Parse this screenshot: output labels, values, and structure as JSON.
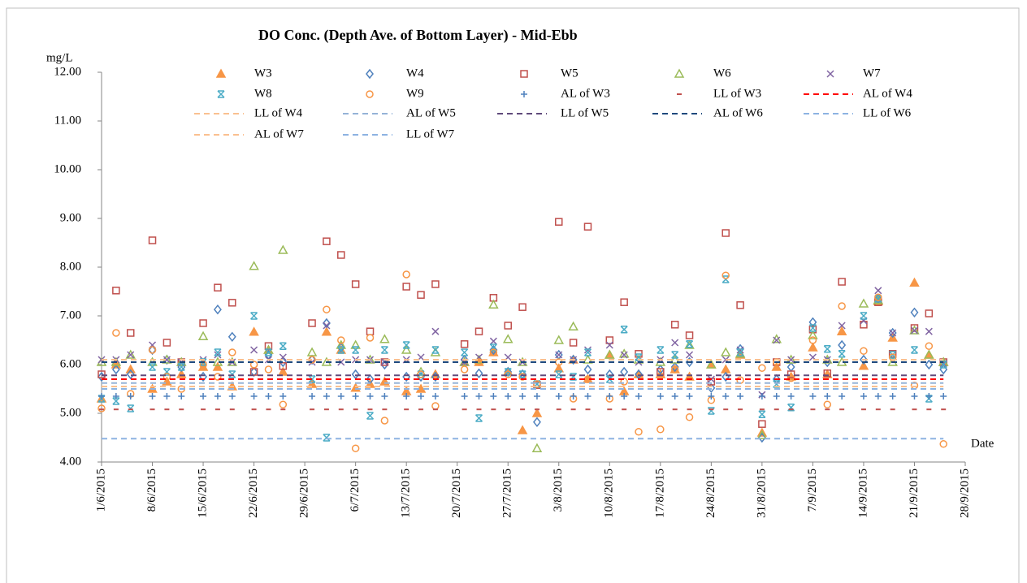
{
  "chart_data": {
    "type": "scatter",
    "title": "DO Conc. (Depth Ave. of Bottom Layer) - Mid-Ebb",
    "y_label": "mg/L",
    "x_label": "Date",
    "x": [
      "2015-06-01",
      "2015-06-03",
      "2015-06-05",
      "2015-06-08",
      "2015-06-10",
      "2015-06-12",
      "2015-06-15",
      "2015-06-17",
      "2015-06-19",
      "2015-06-22",
      "2015-06-24",
      "2015-06-26",
      "2015-06-30",
      "2015-07-02",
      "2015-07-04",
      "2015-07-06",
      "2015-07-08",
      "2015-07-10",
      "2015-07-13",
      "2015-07-15",
      "2015-07-17",
      "2015-07-21",
      "2015-07-23",
      "2015-07-25",
      "2015-07-27",
      "2015-07-29",
      "2015-07-31",
      "2015-08-03",
      "2015-08-05",
      "2015-08-07",
      "2015-08-10",
      "2015-08-12",
      "2015-08-14",
      "2015-08-17",
      "2015-08-19",
      "2015-08-21",
      "2015-08-24",
      "2015-08-26",
      "2015-08-28",
      "2015-08-31",
      "2015-09-02",
      "2015-09-04",
      "2015-09-07",
      "2015-09-09",
      "2015-09-11",
      "2015-09-14",
      "2015-09-16",
      "2015-09-18",
      "2015-09-21",
      "2015-09-23",
      "2015-09-25"
    ],
    "xlim": [
      "2015-06-01",
      "2015-09-28"
    ],
    "xticks": [
      {
        "value": "2015-06-01",
        "label": "1/6/2015"
      },
      {
        "value": "2015-06-08",
        "label": "8/6/2015"
      },
      {
        "value": "2015-06-15",
        "label": "15/6/2015"
      },
      {
        "value": "2015-06-22",
        "label": "22/6/2015"
      },
      {
        "value": "2015-06-29",
        "label": "29/6/2015"
      },
      {
        "value": "2015-07-06",
        "label": "6/7/2015"
      },
      {
        "value": "2015-07-13",
        "label": "13/7/2015"
      },
      {
        "value": "2015-07-20",
        "label": "20/7/2015"
      },
      {
        "value": "2015-07-27",
        "label": "27/7/2015"
      },
      {
        "value": "2015-08-03",
        "label": "3/8/2015"
      },
      {
        "value": "2015-08-10",
        "label": "10/8/2015"
      },
      {
        "value": "2015-08-17",
        "label": "17/8/2015"
      },
      {
        "value": "2015-08-24",
        "label": "24/8/2015"
      },
      {
        "value": "2015-08-31",
        "label": "31/8/2015"
      },
      {
        "value": "2015-09-07",
        "label": "7/9/2015"
      },
      {
        "value": "2015-09-14",
        "label": "14/9/2015"
      },
      {
        "value": "2015-09-21",
        "label": "21/9/2015"
      },
      {
        "value": "2015-09-28",
        "label": "28/9/2015"
      }
    ],
    "ylim": [
      4,
      12
    ],
    "yticks": [
      {
        "value": 4,
        "label": "4.00"
      },
      {
        "value": 5,
        "label": "5.00"
      },
      {
        "value": 6,
        "label": "6.00"
      },
      {
        "value": 7,
        "label": "7.00"
      },
      {
        "value": 8,
        "label": "8.00"
      },
      {
        "value": 9,
        "label": "9.00"
      },
      {
        "value": 10,
        "label": "10.00"
      },
      {
        "value": 11,
        "label": "11.00"
      },
      {
        "value": 12,
        "label": "12.00"
      }
    ],
    "series": [
      {
        "name": "W3",
        "color": "#f79646",
        "marker": "triangle-filled",
        "values": [
          5.3,
          6.0,
          5.9,
          5.5,
          5.65,
          5.8,
          5.95,
          5.95,
          5.55,
          6.67,
          6.3,
          5.85,
          5.6,
          6.67,
          6.3,
          5.52,
          5.6,
          5.65,
          5.45,
          5.5,
          5.8,
          6.05,
          6.05,
          6.25,
          5.85,
          4.65,
          5.0,
          5.92,
          6.1,
          5.7,
          6.2,
          5.45,
          5.8,
          5.8,
          5.9,
          5.75,
          6.0,
          5.9,
          6.2,
          4.6,
          5.95,
          5.75,
          6.35,
          5.8,
          6.68,
          5.97,
          7.3,
          6.55,
          7.68,
          6.2,
          6.05
        ]
      },
      {
        "name": "W4",
        "color": "#4f81bd",
        "marker": "diamond",
        "values": [
          5.75,
          5.9,
          5.8,
          6.3,
          6.1,
          5.95,
          5.75,
          7.13,
          6.57,
          5.85,
          6.2,
          6.05,
          6.1,
          6.85,
          6.35,
          5.8,
          5.7,
          6.0,
          5.75,
          5.75,
          5.75,
          6.1,
          5.82,
          6.3,
          5.85,
          5.8,
          4.82,
          6.2,
          6.1,
          5.9,
          5.8,
          5.85,
          5.8,
          5.9,
          5.95,
          6.05,
          5.52,
          5.75,
          6.32,
          4.5,
          5.7,
          5.95,
          6.87,
          6.05,
          6.4,
          6.1,
          7.35,
          6.65,
          7.07,
          6.0,
          5.9
        ]
      },
      {
        "name": "W5",
        "color": "#c0504d",
        "marker": "square",
        "values": [
          5.8,
          7.52,
          6.65,
          8.55,
          6.45,
          6.05,
          6.85,
          7.58,
          7.27,
          5.85,
          6.38,
          5.97,
          6.85,
          8.53,
          8.25,
          7.65,
          6.68,
          6.05,
          7.6,
          7.43,
          7.65,
          6.42,
          6.68,
          7.37,
          6.8,
          7.18,
          5.58,
          8.93,
          6.45,
          8.83,
          6.5,
          7.28,
          6.22,
          5.85,
          6.82,
          6.6,
          5.65,
          8.7,
          7.22,
          4.78,
          6.05,
          5.8,
          6.72,
          5.82,
          7.7,
          6.82,
          7.28,
          6.22,
          6.75,
          7.05,
          6.05
        ]
      },
      {
        "name": "W6",
        "color": "#9bbb59",
        "marker": "triangle",
        "values": [
          6.05,
          6.05,
          6.2,
          6.05,
          6.1,
          6.05,
          6.58,
          6.05,
          6.05,
          8.02,
          6.3,
          8.35,
          6.25,
          6.05,
          6.4,
          6.4,
          6.1,
          6.52,
          6.3,
          5.85,
          6.25,
          6.05,
          6.1,
          7.23,
          6.52,
          6.05,
          4.28,
          6.5,
          6.78,
          6.1,
          6.2,
          6.22,
          6.1,
          6.05,
          6.1,
          6.4,
          6.0,
          6.25,
          6.22,
          4.55,
          6.52,
          6.1,
          6.6,
          6.1,
          6.05,
          7.25,
          7.32,
          6.05,
          6.7,
          6.2,
          6.05
        ]
      },
      {
        "name": "W7",
        "color": "#8064a2",
        "marker": "x",
        "values": [
          6.1,
          6.1,
          6.2,
          6.4,
          6.1,
          6.05,
          6.1,
          6.2,
          6.05,
          6.3,
          6.1,
          6.15,
          6.05,
          6.8,
          6.05,
          6.1,
          6.1,
          6.05,
          6.1,
          6.15,
          6.68,
          6.05,
          6.15,
          6.48,
          6.15,
          6.05,
          5.6,
          6.2,
          6.1,
          6.3,
          6.4,
          6.2,
          6.05,
          6.1,
          6.45,
          6.2,
          5.7,
          6.1,
          6.3,
          5.38,
          6.5,
          6.1,
          6.15,
          6.1,
          6.8,
          6.9,
          7.52,
          6.65,
          6.7,
          6.68,
          6.02
        ]
      },
      {
        "name": "W8",
        "color": "#4bacc6",
        "marker": "star",
        "values": [
          5.3,
          5.25,
          5.1,
          5.95,
          5.85,
          5.95,
          6.05,
          6.25,
          5.8,
          7.0,
          6.25,
          6.38,
          5.7,
          4.5,
          6.3,
          6.3,
          4.95,
          6.3,
          6.4,
          5.8,
          6.3,
          6.25,
          4.9,
          6.35,
          5.85,
          5.8,
          5.6,
          5.8,
          5.75,
          6.25,
          5.7,
          6.72,
          6.15,
          6.3,
          6.2,
          6.42,
          5.05,
          7.75,
          6.25,
          4.98,
          5.6,
          5.12,
          6.75,
          6.32,
          6.22,
          7.0,
          7.35,
          6.2,
          6.3,
          5.3,
          6.0
        ]
      },
      {
        "name": "W9",
        "color": "#f79646",
        "marker": "circle",
        "values": [
          5.1,
          6.65,
          5.4,
          6.3,
          5.75,
          5.5,
          6.0,
          5.75,
          6.25,
          6.0,
          5.9,
          5.18,
          6.1,
          7.13,
          6.5,
          4.28,
          6.55,
          4.85,
          7.85,
          5.8,
          5.15,
          5.9,
          6.05,
          6.25,
          5.8,
          5.75,
          5.6,
          6.05,
          5.3,
          5.7,
          5.3,
          5.65,
          4.62,
          4.67,
          5.9,
          4.92,
          5.27,
          7.83,
          5.68,
          5.93,
          6.05,
          5.72,
          6.5,
          5.18,
          7.2,
          6.28,
          7.38,
          6.15,
          5.57,
          6.38,
          4.37
        ]
      },
      {
        "name": "AL of W3",
        "color": "#4f81bd",
        "marker": "plus",
        "values": [
          5.35,
          5.35,
          5.35,
          5.35,
          5.35,
          5.35,
          5.35,
          5.35,
          5.35,
          5.35,
          5.35,
          5.35,
          5.35,
          5.35,
          5.35,
          5.35,
          5.35,
          5.35,
          5.35,
          5.35,
          5.35,
          5.35,
          5.35,
          5.35,
          5.35,
          5.35,
          5.35,
          5.35,
          5.35,
          5.35,
          5.35,
          5.35,
          5.35,
          5.35,
          5.35,
          5.35,
          5.35,
          5.35,
          5.35,
          5.35,
          5.35,
          5.35,
          5.35,
          5.35,
          5.35,
          5.35,
          5.35,
          5.35,
          5.35,
          5.35,
          5.35
        ]
      },
      {
        "name": "LL of W3",
        "color": "#c0504d",
        "marker": "dash",
        "values": [
          5.08,
          5.08,
          5.08,
          5.08,
          5.08,
          5.08,
          5.08,
          5.08,
          5.08,
          5.08,
          5.08,
          5.08,
          5.08,
          5.08,
          5.08,
          5.08,
          5.08,
          5.08,
          5.08,
          5.08,
          5.08,
          5.08,
          5.08,
          5.08,
          5.08,
          5.08,
          5.08,
          5.08,
          5.08,
          5.08,
          5.08,
          5.08,
          5.08,
          5.08,
          5.08,
          5.08,
          5.08,
          5.08,
          5.08,
          5.08,
          5.08,
          5.08,
          5.08,
          5.08,
          5.08,
          5.08,
          5.08,
          5.08,
          5.08,
          5.08,
          5.08
        ]
      },
      {
        "name": "AL of W4",
        "color": "#ff0000",
        "marker": "dashed-line",
        "values": [
          5.7,
          5.7,
          5.7,
          5.7,
          5.7,
          5.7,
          5.7,
          5.7,
          5.7,
          5.7,
          5.7,
          5.7,
          5.7,
          5.7,
          5.7,
          5.7,
          5.7,
          5.7,
          5.7,
          5.7,
          5.7,
          5.7,
          5.7,
          5.7,
          5.7,
          5.7,
          5.7,
          5.7,
          5.7,
          5.7,
          5.7,
          5.7,
          5.7,
          5.7,
          5.7,
          5.7,
          5.7,
          5.7,
          5.7,
          5.7,
          5.7,
          5.7,
          5.7,
          5.7,
          5.7,
          5.7,
          5.7,
          5.7,
          5.7,
          5.7,
          5.7
        ]
      },
      {
        "name": "LL of W4",
        "color": "#fac090",
        "marker": "dashed-line",
        "values": [
          5.55,
          5.55,
          5.55,
          5.55,
          5.55,
          5.55,
          5.55,
          5.55,
          5.55,
          5.55,
          5.55,
          5.55,
          5.55,
          5.55,
          5.55,
          5.55,
          5.55,
          5.55,
          5.55,
          5.55,
          5.55,
          5.55,
          5.55,
          5.55,
          5.55,
          5.55,
          5.55,
          5.55,
          5.55,
          5.55,
          5.55,
          5.55,
          5.55,
          5.55,
          5.55,
          5.55,
          5.55,
          5.55,
          5.55,
          5.55,
          5.55,
          5.55,
          5.55,
          5.55,
          5.55,
          5.55,
          5.55,
          5.55,
          5.55,
          5.55,
          5.55
        ]
      },
      {
        "name": "AL of W5",
        "color": "#95b3d7",
        "marker": "dashed-line",
        "values": [
          5.62,
          5.62,
          5.62,
          5.62,
          5.62,
          5.62,
          5.62,
          5.62,
          5.62,
          5.62,
          5.62,
          5.62,
          5.62,
          5.62,
          5.62,
          5.62,
          5.62,
          5.62,
          5.62,
          5.62,
          5.62,
          5.62,
          5.62,
          5.62,
          5.62,
          5.62,
          5.62,
          5.62,
          5.62,
          5.62,
          5.62,
          5.62,
          5.62,
          5.62,
          5.62,
          5.62,
          5.62,
          5.62,
          5.62,
          5.62,
          5.62,
          5.62,
          5.62,
          5.62,
          5.62,
          5.62,
          5.62,
          5.62,
          5.62,
          5.62,
          5.62
        ]
      },
      {
        "name": "LL of W5",
        "color": "#604a7b",
        "marker": "dashed-line",
        "values": [
          5.78,
          5.78,
          5.78,
          5.78,
          5.78,
          5.78,
          5.78,
          5.78,
          5.78,
          5.78,
          5.78,
          5.78,
          5.78,
          5.78,
          5.78,
          5.78,
          5.78,
          5.78,
          5.78,
          5.78,
          5.78,
          5.78,
          5.78,
          5.78,
          5.78,
          5.78,
          5.78,
          5.78,
          5.78,
          5.78,
          5.78,
          5.78,
          5.78,
          5.78,
          5.78,
          5.78,
          5.78,
          5.78,
          5.78,
          5.78,
          5.78,
          5.78,
          5.78,
          5.78,
          5.78,
          5.78,
          5.78,
          5.78,
          5.78,
          5.78,
          5.78
        ]
      },
      {
        "name": "AL of W6",
        "color": "#1f497d",
        "marker": "dashed-line",
        "values": [
          6.05,
          6.05,
          6.05,
          6.05,
          6.05,
          6.05,
          6.05,
          6.05,
          6.05,
          6.05,
          6.05,
          6.05,
          6.05,
          6.05,
          6.05,
          6.05,
          6.05,
          6.05,
          6.05,
          6.05,
          6.05,
          6.05,
          6.05,
          6.05,
          6.05,
          6.05,
          6.05,
          6.05,
          6.05,
          6.05,
          6.05,
          6.05,
          6.05,
          6.05,
          6.05,
          6.05,
          6.05,
          6.05,
          6.05,
          6.05,
          6.05,
          6.05,
          6.05,
          6.05,
          6.05,
          6.05,
          6.05,
          6.05,
          6.05,
          6.05,
          6.05
        ]
      },
      {
        "name": "LL of W6",
        "color": "#8db3e2",
        "marker": "dashed-line",
        "values": [
          4.48,
          4.48,
          4.48,
          4.48,
          4.48,
          4.48,
          4.48,
          4.48,
          4.48,
          4.48,
          4.48,
          4.48,
          4.48,
          4.48,
          4.48,
          4.48,
          4.48,
          4.48,
          4.48,
          4.48,
          4.48,
          4.48,
          4.48,
          4.48,
          4.48,
          4.48,
          4.48,
          4.48,
          4.48,
          4.48,
          4.48,
          4.48,
          4.48,
          4.48,
          4.48,
          4.48,
          4.48,
          4.48,
          4.48,
          4.48,
          4.48,
          4.48,
          4.48,
          4.48,
          4.48,
          4.48,
          4.48,
          4.48,
          4.48,
          4.48,
          4.48
        ]
      },
      {
        "name": "AL of W7",
        "color": "#fac090",
        "marker": "dashed-line",
        "values": [
          6.1,
          6.1,
          6.1,
          6.1,
          6.1,
          6.1,
          6.1,
          6.1,
          6.1,
          6.1,
          6.1,
          6.1,
          6.1,
          6.1,
          6.1,
          6.1,
          6.1,
          6.1,
          6.1,
          6.1,
          6.1,
          6.1,
          6.1,
          6.1,
          6.1,
          6.1,
          6.1,
          6.1,
          6.1,
          6.1,
          6.1,
          6.1,
          6.1,
          6.1,
          6.1,
          6.1,
          6.1,
          6.1,
          6.1,
          6.1,
          6.1,
          6.1,
          6.1,
          6.1,
          6.1,
          6.1,
          6.1,
          6.1,
          6.1,
          6.1,
          6.1
        ]
      },
      {
        "name": "LL of W7",
        "color": "#8db3e2",
        "marker": "dashed-line",
        "values": [
          5.5,
          5.5,
          5.5,
          5.5,
          5.5,
          5.5,
          5.5,
          5.5,
          5.5,
          5.5,
          5.5,
          5.5,
          5.5,
          5.5,
          5.5,
          5.5,
          5.5,
          5.5,
          5.5,
          5.5,
          5.5,
          5.5,
          5.5,
          5.5,
          5.5,
          5.5,
          5.5,
          5.5,
          5.5,
          5.5,
          5.5,
          5.5,
          5.5,
          5.5,
          5.5,
          5.5,
          5.5,
          5.5,
          5.5,
          5.5,
          5.5,
          5.5,
          5.5,
          5.5,
          5.5,
          5.5,
          5.5,
          5.5,
          5.5,
          5.5,
          5.5
        ]
      }
    ]
  }
}
